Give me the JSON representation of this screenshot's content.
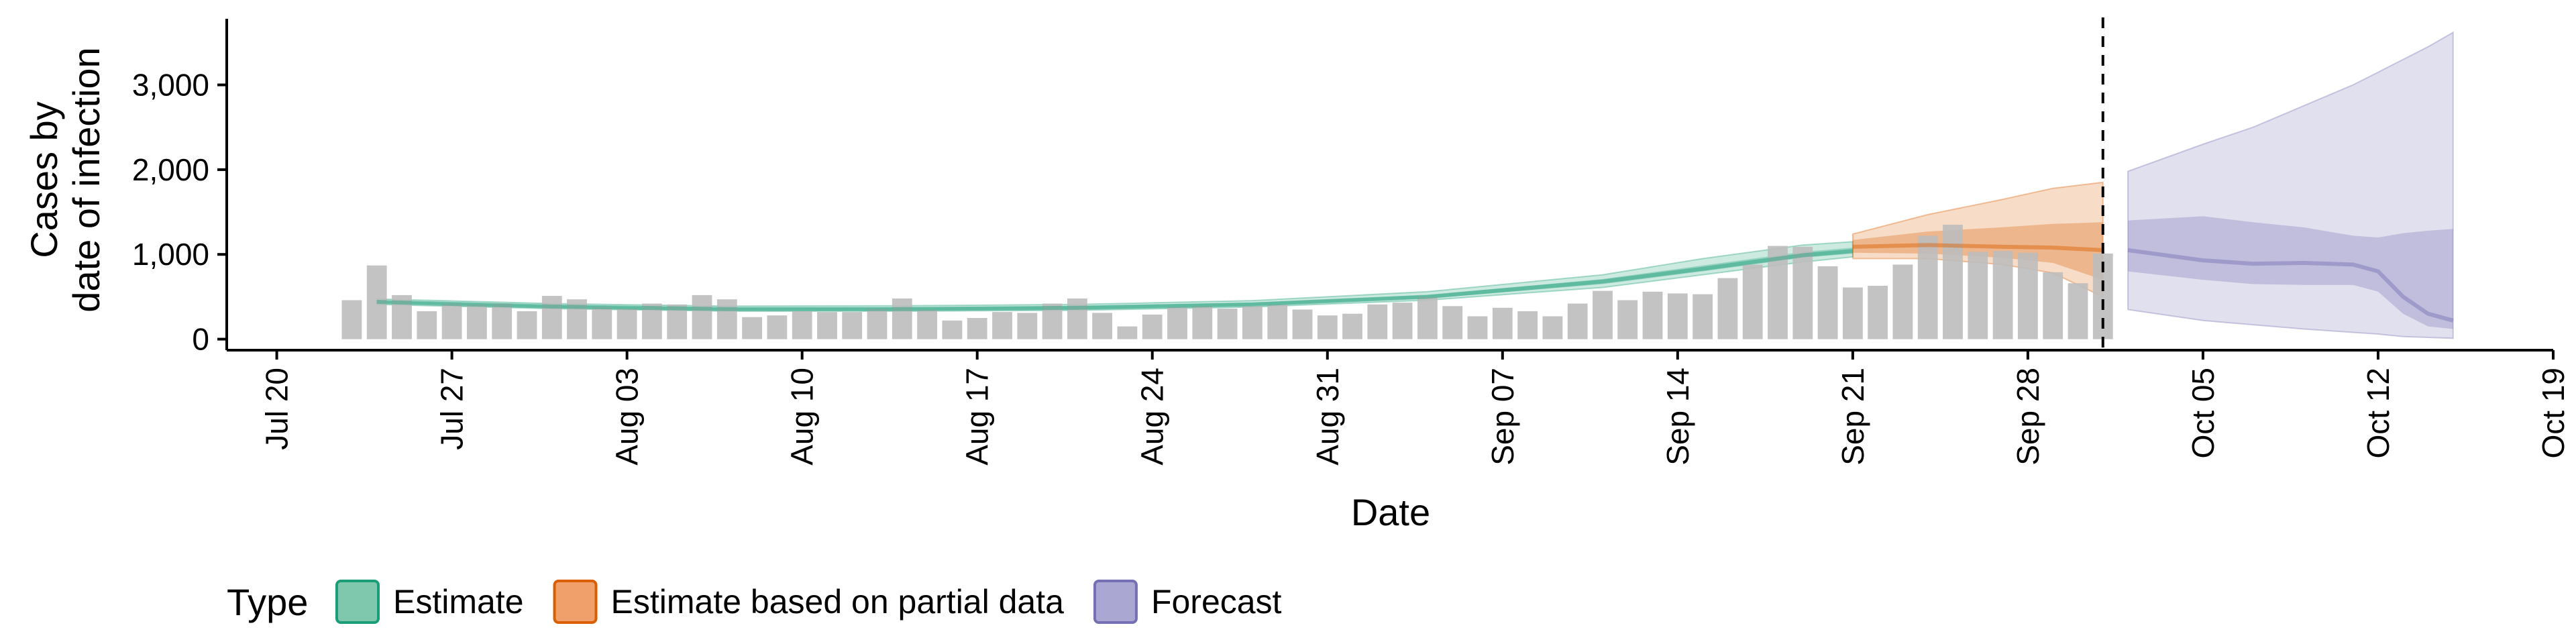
{
  "chart_data": {
    "type": "bar+ribbon",
    "xlabel": "Date",
    "ylabel_lines": [
      "Cases by",
      "date of infection"
    ],
    "x_ticks": [
      "Jul 20",
      "Jul 27",
      "Aug 03",
      "Aug 10",
      "Aug 17",
      "Aug 24",
      "Aug 31",
      "Sep 07",
      "Sep 14",
      "Sep 21",
      "Sep 28",
      "Oct 05",
      "Oct 12",
      "Oct 19"
    ],
    "x_tick_dates": [
      "2020-07-20",
      "2020-07-27",
      "2020-08-03",
      "2020-08-10",
      "2020-08-17",
      "2020-08-24",
      "2020-08-31",
      "2020-09-07",
      "2020-09-14",
      "2020-09-21",
      "2020-09-28",
      "2020-10-05",
      "2020-10-12",
      "2020-10-19"
    ],
    "y_ticks": [
      0,
      1000,
      2000,
      3000
    ],
    "y_tick_labels": [
      "0",
      "1,000",
      "2,000",
      "3,000"
    ],
    "xlim": [
      "2020-07-18",
      "2020-10-19"
    ],
    "ylim": [
      -130,
      3780
    ],
    "vline_date": "2020-10-01",
    "bar_color": "#bdbdbd",
    "bars": {
      "start_date": "2020-07-23",
      "values": [
        460,
        870,
        520,
        330,
        420,
        410,
        420,
        330,
        510,
        470,
        380,
        360,
        420,
        410,
        520,
        470,
        260,
        280,
        330,
        320,
        320,
        360,
        480,
        350,
        220,
        250,
        320,
        310,
        420,
        480,
        310,
        150,
        290,
        380,
        390,
        360,
        390,
        410,
        350,
        280,
        300,
        410,
        430,
        500,
        390,
        270,
        370,
        330,
        270,
        420,
        570,
        460,
        560,
        540,
        530,
        720,
        880,
        1100,
        1090,
        860,
        610,
        630,
        880,
        1220,
        1350,
        1030,
        1040,
        1020,
        790,
        660,
        1010
      ]
    },
    "legend": {
      "title": "Type",
      "items": [
        {
          "label": "Estimate",
          "fill": "#7fc8ad",
          "stroke": "#1b9e77"
        },
        {
          "label": "Estimate based on partial data",
          "fill": "#f0a06a",
          "stroke": "#d95f02"
        },
        {
          "label": "Forecast",
          "fill": "#aaa8d2",
          "stroke": "#7570b3"
        }
      ]
    },
    "series": [
      {
        "name": "Estimate",
        "color": "#1b9e77",
        "dates": [
          "2020-07-24",
          "2020-07-31",
          "2020-08-07",
          "2020-08-14",
          "2020-08-21",
          "2020-08-28",
          "2020-09-04",
          "2020-09-11",
          "2020-09-15",
          "2020-09-19",
          "2020-09-21"
        ],
        "outer_low": [
          410,
          360,
          330,
          330,
          340,
          380,
          460,
          610,
          760,
          910,
          970
        ],
        "inner_low": [
          425,
          370,
          340,
          340,
          350,
          395,
          480,
          650,
          800,
          960,
          1010
        ],
        "median": [
          440,
          385,
          355,
          355,
          370,
          410,
          500,
          680,
          830,
          990,
          1040
        ],
        "inner_high": [
          455,
          400,
          370,
          375,
          390,
          430,
          520,
          710,
          870,
          1030,
          1080
        ],
        "outer_high": [
          475,
          420,
          390,
          395,
          410,
          455,
          560,
          760,
          950,
          1110,
          1150
        ]
      },
      {
        "name": "Estimate based on partial data",
        "color": "#d95f02",
        "dates": [
          "2020-09-21",
          "2020-09-24",
          "2020-09-27",
          "2020-09-29",
          "2020-10-01"
        ],
        "outer_low": [
          950,
          950,
          880,
          780,
          500
        ],
        "inner_low": [
          1020,
          1010,
          960,
          900,
          700
        ],
        "median": [
          1090,
          1110,
          1090,
          1080,
          1050
        ],
        "inner_high": [
          1170,
          1270,
          1320,
          1360,
          1380
        ],
        "outer_high": [
          1240,
          1470,
          1650,
          1780,
          1850
        ]
      },
      {
        "name": "Forecast",
        "color": "#7570b3",
        "dates": [
          "2020-10-02",
          "2020-10-05",
          "2020-10-07",
          "2020-10-09",
          "2020-10-11",
          "2020-10-12",
          "2020-10-13",
          "2020-10-14",
          "2020-10-15"
        ],
        "outer_low": [
          350,
          220,
          170,
          120,
          80,
          60,
          30,
          20,
          10
        ],
        "inner_low": [
          800,
          700,
          650,
          640,
          640,
          560,
          300,
          150,
          120
        ],
        "median": [
          1050,
          930,
          890,
          900,
          880,
          800,
          500,
          300,
          220
        ],
        "inner_high": [
          1400,
          1450,
          1380,
          1320,
          1220,
          1200,
          1250,
          1280,
          1300
        ],
        "outer_high": [
          1980,
          2300,
          2500,
          2750,
          3000,
          3150,
          3300,
          3450,
          3620
        ]
      }
    ]
  }
}
